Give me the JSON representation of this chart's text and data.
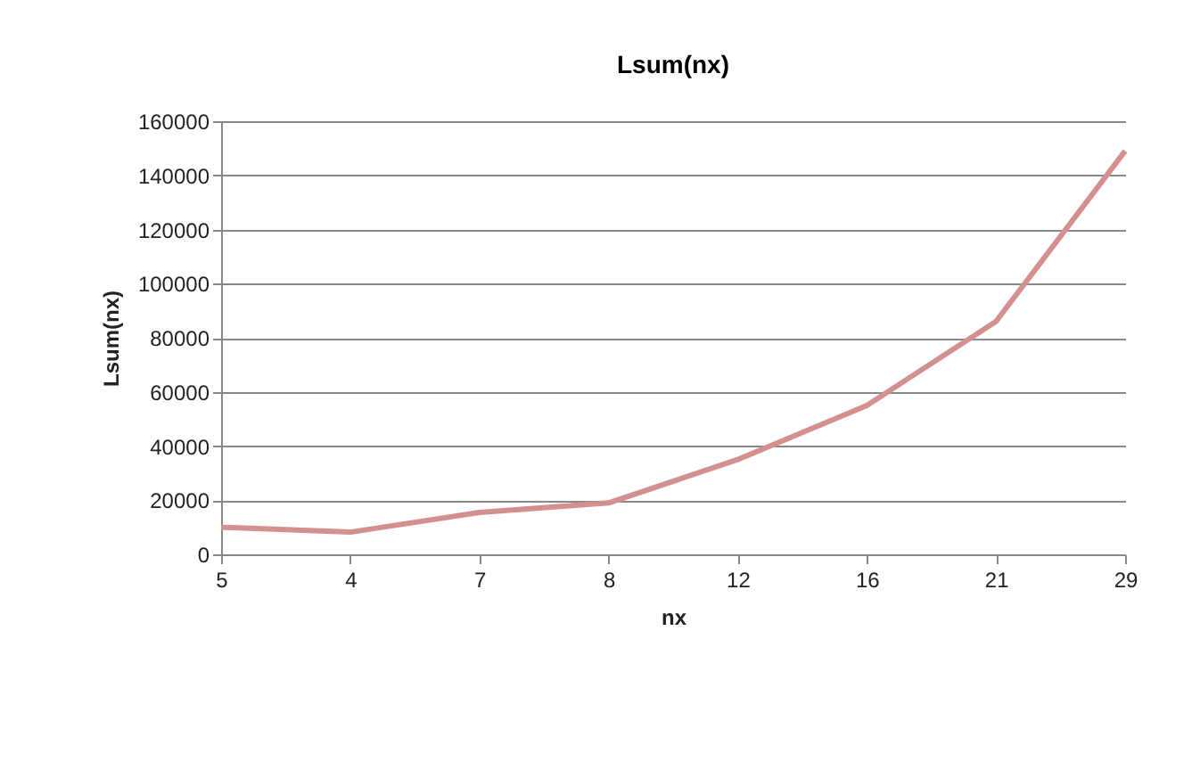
{
  "chart_data": {
    "type": "line",
    "title": "Lsum(nx)",
    "xlabel": "nx",
    "ylabel": "Lsum(nx)",
    "categories": [
      "5",
      "4",
      "7",
      "8",
      "12",
      "16",
      "21",
      "29"
    ],
    "series": [
      {
        "color": "#d4908f",
        "values": [
          10000,
          8200,
          15500,
          19000,
          35000,
          55000,
          86000,
          149000
        ]
      }
    ],
    "ylim": [
      0,
      160000
    ],
    "yticks": [
      0,
      20000,
      40000,
      60000,
      80000,
      100000,
      120000,
      140000,
      160000
    ],
    "grid": "y",
    "marker": "none",
    "line_style": "solid"
  }
}
